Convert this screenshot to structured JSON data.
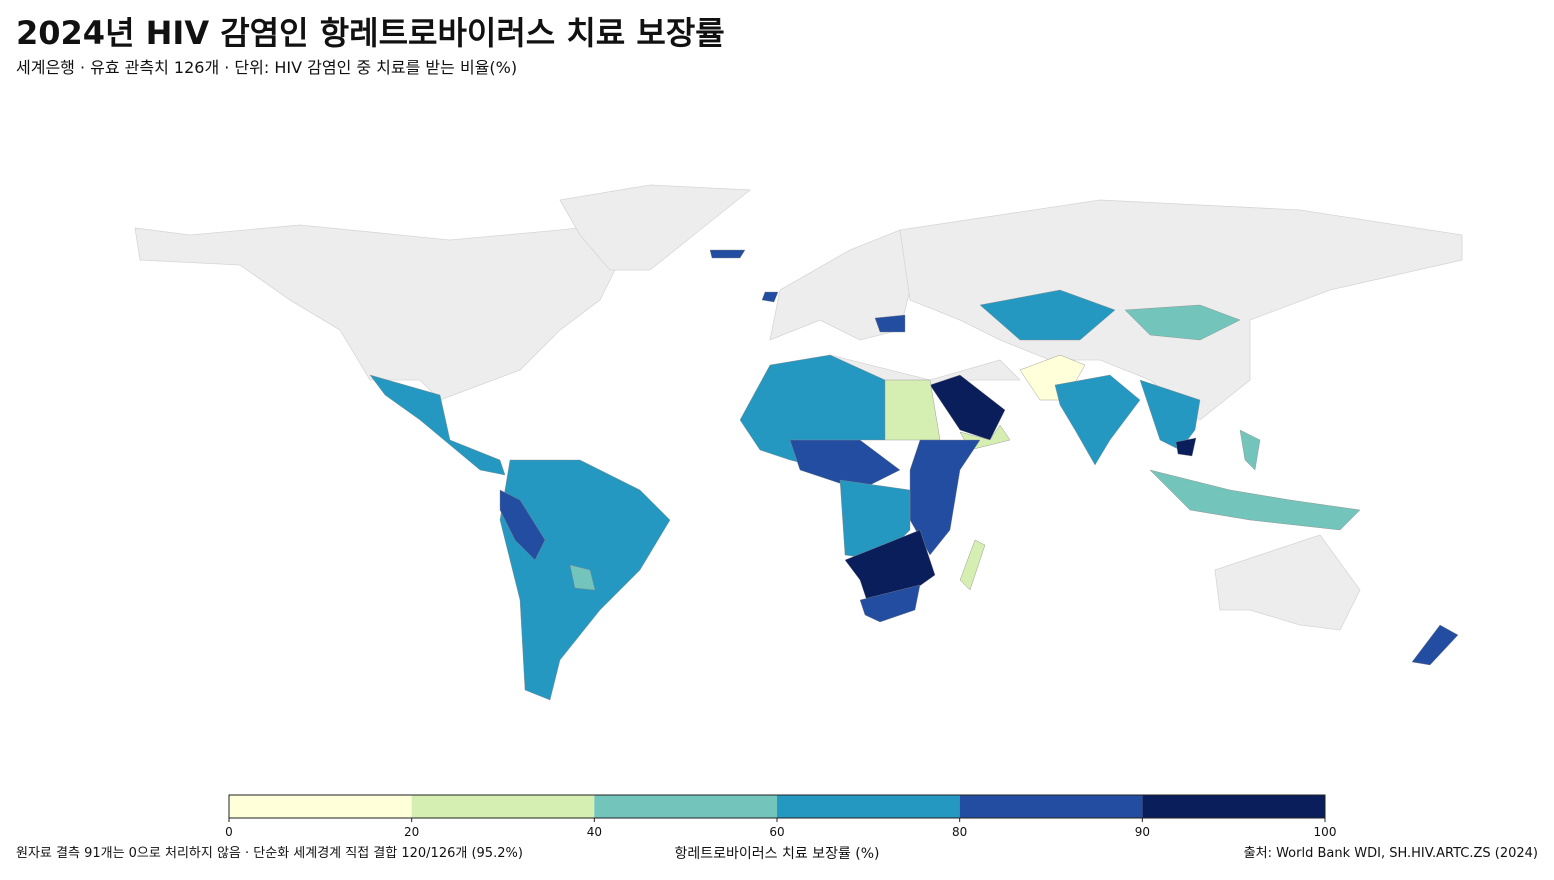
{
  "title": "2024년 HIV 감염인 항레트로바이러스 치료 보장률",
  "subtitle": "세계은행 · 유효 관측치 126개 · 단위: HIV 감염인 중 치료를 받는 비율(%)",
  "colorbar": {
    "label": "항레트로바이러스 치료 보장률 (%)",
    "bins": [
      0,
      20,
      40,
      60,
      80,
      90,
      100
    ],
    "colors": [
      "#ffffd9",
      "#d5efb3",
      "#73c5bc",
      "#2598c1",
      "#234da0",
      "#0a1e5b"
    ]
  },
  "footnote": "원자료 결측 91개는 0으로 처리하지 않음 · 단순화 세계경계 직접 결합 120/126개 (95.2%)",
  "source": "출처: World Bank WDI, SH.HIV.ARTC.ZS (2024)"
}
